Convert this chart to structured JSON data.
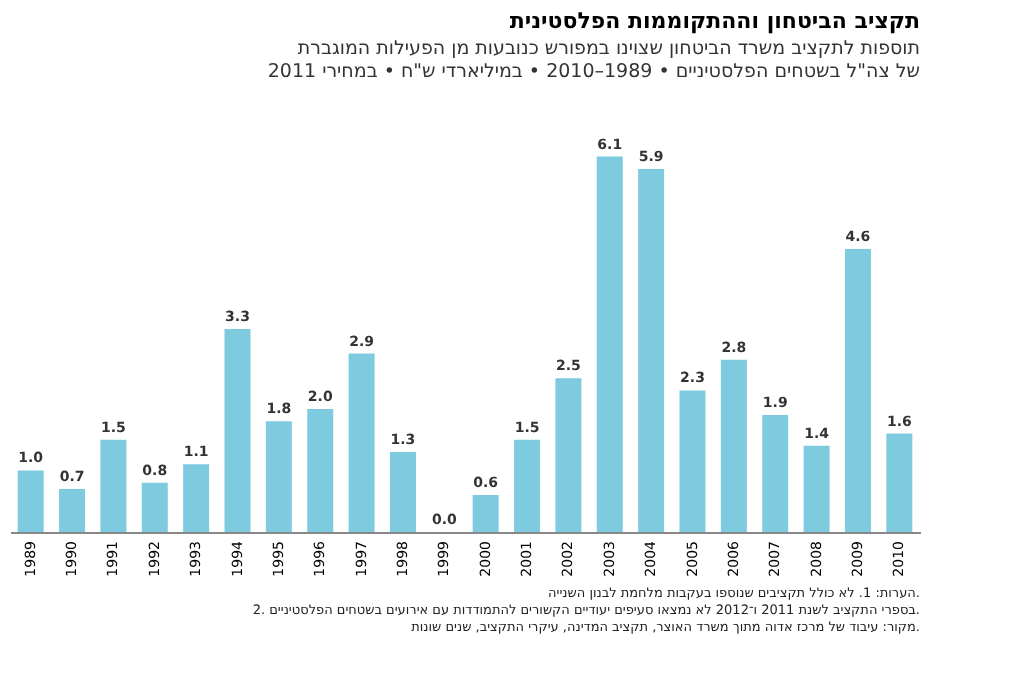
{
  "chart_data": {
    "type": "bar",
    "title": "תקציב הביטחון וההתקוממות הפלסטינית",
    "subtitle": [
      "תוספות לתקציב משרד הביטחון שצוינו במפורש כנובעות מן הפעילות המוגברת",
      "של צה\"ל בשטחים הפלסטיניים • 1989–2010 • במיליארדי ש\"ח • במחירי 2011"
    ],
    "categories": [
      "1989",
      "1990",
      "1991",
      "1992",
      "1993",
      "1994",
      "1995",
      "1996",
      "1997",
      "1998",
      "1999",
      "2000",
      "2001",
      "2002",
      "2003",
      "2004",
      "2005",
      "2006",
      "2007",
      "2008",
      "2009",
      "2010"
    ],
    "values": [
      1.0,
      0.7,
      1.5,
      0.8,
      1.1,
      3.3,
      1.8,
      2.0,
      2.9,
      1.3,
      0.0,
      0.6,
      1.5,
      2.5,
      6.1,
      5.9,
      2.3,
      2.8,
      1.9,
      1.4,
      4.6,
      1.6
    ],
    "color": "#7ecbe0",
    "value_labels": [
      "1.0",
      "0.7",
      "1.5",
      "0.8",
      "1.1",
      "3.3",
      "1.8",
      "2.0",
      "2.9",
      "1.3",
      "0.0",
      "0.6",
      "1.5",
      "2.5",
      "6.1",
      "5.9",
      "2.3",
      "2.8",
      "1.9",
      "1.4",
      "4.6",
      "1.6"
    ],
    "annotations": [
      "הערות: 1. לא כולל תקציבים שנוספו בעקבות מלחמת לבנון השנייה.",
      "2. בספרי התקציב לשנת 2011 ו־2012 לא נמצאו סעיפים יעודיים הקשורים להתמודדות עם אירועים בשטחים הפלסטיניים.",
      "מקור: עיבוד של מרכז אדוה מתוך משרד האוצר, תקציב המדינה, עיקרי התקציב, שנים שונות."
    ]
  }
}
